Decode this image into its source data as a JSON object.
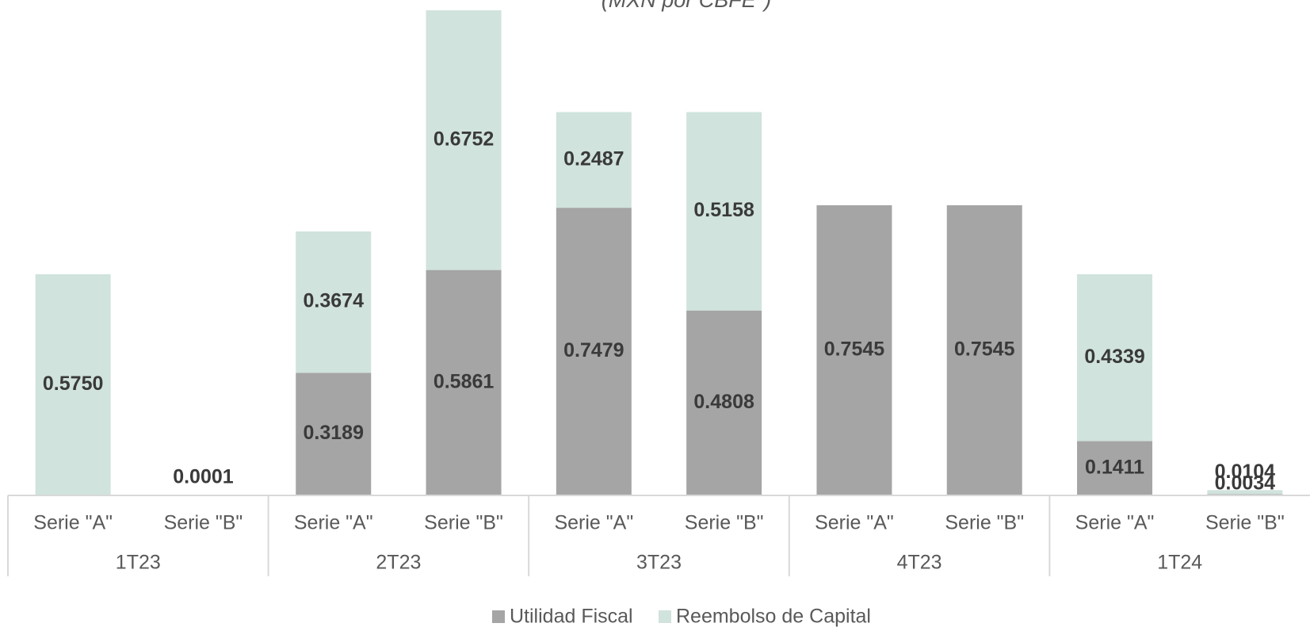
{
  "chart_data": {
    "type": "stacked_bar",
    "subtitle": "(MXN por CBFE*)",
    "categories": [
      "Serie \"A\"",
      "Serie \"B\"",
      "Serie \"A\"",
      "Serie \"B\"",
      "Serie \"A\"",
      "Serie \"B\"",
      "Serie \"A\"",
      "Serie \"B\"",
      "Serie \"A\"",
      "Serie \"B\""
    ],
    "groups": [
      "1T23",
      "2T23",
      "3T23",
      "4T23",
      "1T24"
    ],
    "series": [
      {
        "name": "Utilidad Fiscal",
        "color": "#a5a5a5",
        "values": [
          null,
          null,
          0.3189,
          0.5861,
          0.7479,
          0.4808,
          0.7545,
          0.7545,
          0.1411,
          0.0034
        ],
        "value_labels": [
          null,
          null,
          "0.3189",
          "0.5861",
          "0.7479",
          "0.4808",
          "0.7545",
          "0.7545",
          "0.1411",
          "0.0034"
        ]
      },
      {
        "name": "Reembolso de Capital",
        "color": "#d0e3dc",
        "values": [
          0.575,
          0.0001,
          0.3674,
          0.6752,
          0.2487,
          0.5158,
          null,
          null,
          0.4339,
          0.0104
        ],
        "value_labels": [
          "0.5750",
          "0.0001",
          "0.3674",
          "0.6752",
          "0.2487",
          "0.5158",
          null,
          null,
          "0.4339",
          "0.0104"
        ]
      }
    ],
    "legend": "bottom"
  }
}
